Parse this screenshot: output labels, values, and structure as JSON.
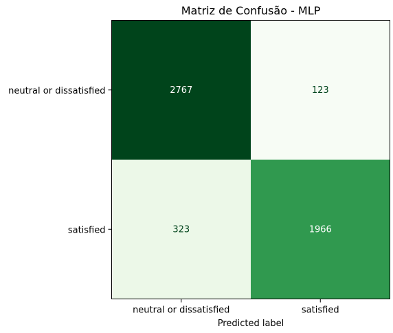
{
  "chart_data": {
    "type": "heatmap",
    "title": "Matriz de Confusão - MLP",
    "xlabel": "Predicted label",
    "ylabel": "",
    "x_categories": [
      "neutral or dissatisfied",
      "satisfied"
    ],
    "y_categories": [
      "neutral or dissatisfied",
      "satisfied"
    ],
    "values": [
      [
        2767,
        123
      ],
      [
        323,
        1966
      ]
    ],
    "colormap": "Greens",
    "colormap_stops": [
      "#f7fcf5",
      "#e5f5e0",
      "#c7e9c0",
      "#a1d99b",
      "#74c476",
      "#41ab5d",
      "#238b45",
      "#006d2c",
      "#00441b"
    ],
    "text_color_light": "#ffffff",
    "text_color_dark": "#00441b",
    "grid": false
  }
}
